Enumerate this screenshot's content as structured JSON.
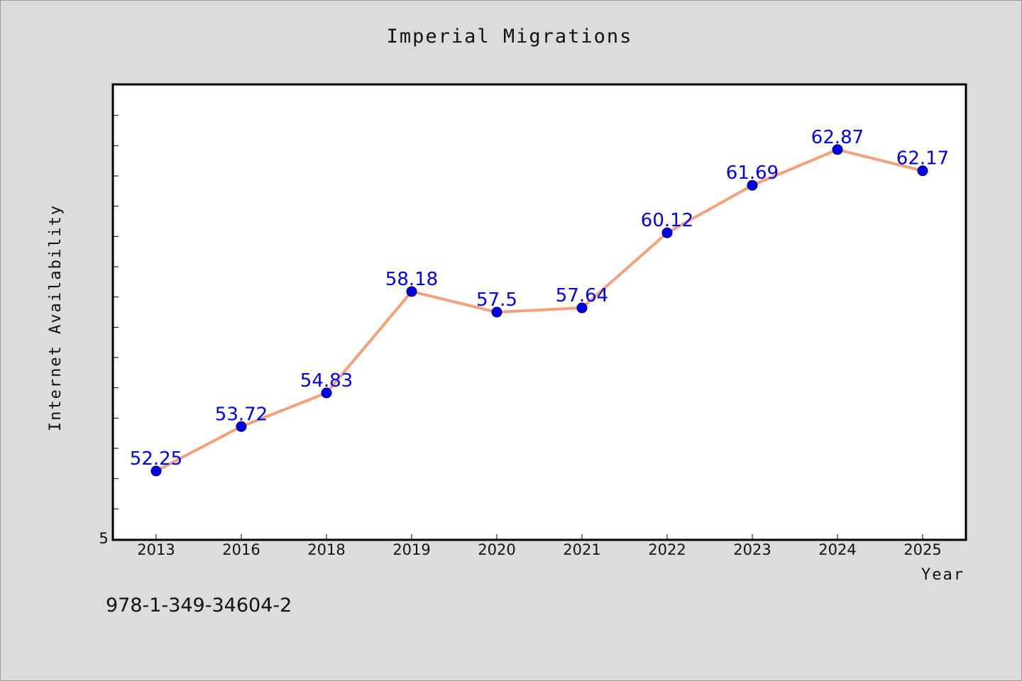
{
  "chart_data": {
    "type": "line",
    "title": "Imperial Migrations",
    "xlabel": "Year",
    "ylabel": "Internet Availability",
    "categories": [
      "2013",
      "2016",
      "2018",
      "2019",
      "2020",
      "2021",
      "2022",
      "2023",
      "2024",
      "2025"
    ],
    "series": [
      {
        "values": [
          52.25,
          53.72,
          54.83,
          58.18,
          57.5,
          57.64,
          60.12,
          61.69,
          62.87,
          62.17
        ],
        "data_labels": [
          "52.25",
          "53.72",
          "54.83",
          "58.18",
          "57.5",
          "57.64",
          "60.12",
          "61.69",
          "62.87",
          "62.17"
        ]
      }
    ],
    "y_tick_labels": [
      "5"
    ],
    "ylim": [
      50,
      65
    ],
    "grid": false,
    "legend": "none",
    "line_color": "#f4a07a",
    "marker_color": "#0000ee",
    "label_color": "#0000ee"
  },
  "footer": {
    "isbn": "978-1-349-34604-2"
  }
}
